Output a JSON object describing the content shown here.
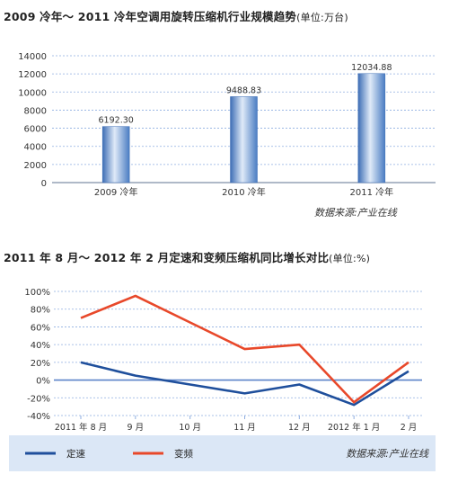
{
  "charts": [
    {
      "title": "2009 冷年～ 2011 冷年空调用旋转压缩机行业规模趋势",
      "unit": "(单位:万台)",
      "source": "数据来源:产业在线",
      "colors": {
        "bar": "#4f7fc4",
        "bar_light": "#d7e5f7",
        "grid": "#8faee0",
        "axis": "#7f8fa8"
      }
    },
    {
      "title": "2011 年 8 月～ 2012 年 2 月定速和变频压缩机同比增长对比",
      "unit": "(单位:%)",
      "source": "数据来源:产业在线",
      "legend": [
        "定速",
        "变频"
      ],
      "colors": {
        "series1": "#1f4f9c",
        "series2": "#e8482a",
        "grid": "#8faee0",
        "zero_line": "#5b83c9",
        "legend_bg": "#dbe7f6"
      }
    }
  ],
  "chart_data": [
    {
      "type": "bar",
      "categories": [
        "2009 冷年",
        "2010 冷年",
        "2011 冷年"
      ],
      "values": [
        6192.3,
        9488.83,
        12034.88
      ],
      "value_labels": [
        "6192.30",
        "9488.83",
        "12034.88"
      ],
      "yticks": [
        "14000",
        "12000",
        "10000",
        "8000",
        "6000",
        "4000",
        "2000",
        "0"
      ],
      "ylim": [
        0,
        14000
      ],
      "grid": true
    },
    {
      "type": "line",
      "categories": [
        "2011 年 8 月",
        "9 月",
        "10 月",
        "11 月",
        "12 月",
        "2012 年 1 月",
        "2 月"
      ],
      "series": [
        {
          "name": "定速",
          "values": [
            20,
            5,
            -5,
            -15,
            -5,
            -28,
            10
          ]
        },
        {
          "name": "变频",
          "values": [
            70,
            95,
            65,
            35,
            40,
            -25,
            20
          ]
        }
      ],
      "yticks": [
        "100%",
        "80%",
        "60%",
        "40%",
        "20%",
        "0%",
        "-20%",
        "-40%"
      ],
      "ylim": [
        -40,
        100
      ],
      "grid": true,
      "legend_position": "bottom"
    }
  ]
}
